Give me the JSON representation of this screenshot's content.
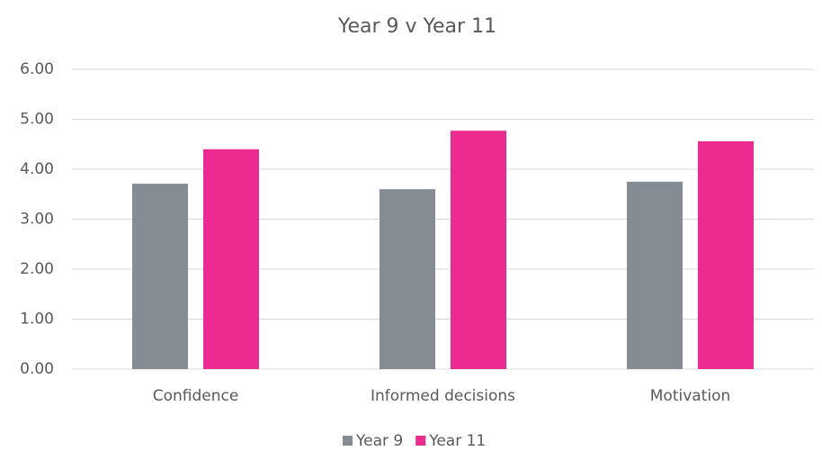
{
  "chart_data": {
    "type": "bar",
    "title": "Year 9 v Year 11",
    "categories": [
      "Confidence",
      "Informed decisions",
      "Motivation"
    ],
    "series": [
      {
        "name": "Year 9",
        "color": "#858c94",
        "values": [
          3.71,
          3.6,
          3.75
        ]
      },
      {
        "name": "Year 11",
        "color": "#ec2a8f",
        "values": [
          4.4,
          4.77,
          4.56
        ]
      }
    ],
    "ylim": [
      0,
      6
    ],
    "yticks": [
      {
        "value": 0,
        "label": "0.00"
      },
      {
        "value": 1,
        "label": "1.00"
      },
      {
        "value": 2,
        "label": "2.00"
      },
      {
        "value": 3,
        "label": "3.00"
      },
      {
        "value": 4,
        "label": "4.00"
      },
      {
        "value": 5,
        "label": "5.00"
      },
      {
        "value": 6,
        "label": "6.00"
      }
    ],
    "grid": true,
    "legend": "bottom"
  }
}
